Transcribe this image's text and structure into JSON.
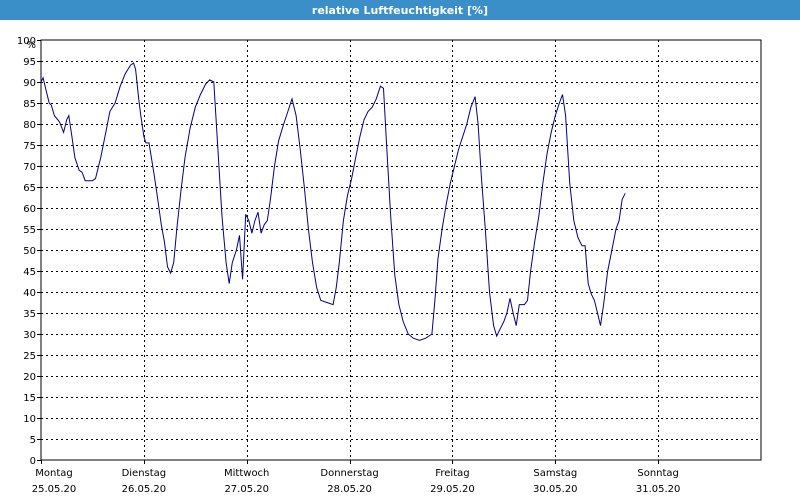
{
  "window": {
    "title": "relative Luftfeuchtigkeit [%]"
  },
  "chart_data": {
    "type": "line",
    "title": "relative Luftfeuchtigkeit [%]",
    "yunit": "%",
    "ylim": [
      0,
      100
    ],
    "yticks": [
      0,
      5,
      10,
      15,
      20,
      25,
      30,
      35,
      40,
      45,
      50,
      55,
      60,
      65,
      70,
      75,
      80,
      85,
      90,
      95,
      100
    ],
    "xlim": [
      0,
      7
    ],
    "x_labels": [
      {
        "day": "Montag",
        "date": "25.05.20"
      },
      {
        "day": "Dienstag",
        "date": "26.05.20"
      },
      {
        "day": "Mittwoch",
        "date": "27.05.20"
      },
      {
        "day": "Donnerstag",
        "date": "28.05.20"
      },
      {
        "day": "Freitag",
        "date": "29.05.20"
      },
      {
        "day": "Samstag",
        "date": "30.05.20"
      },
      {
        "day": "Sonntag",
        "date": "31.05.20"
      }
    ],
    "grid": true,
    "line_color": "#00008b",
    "series": [
      {
        "points": [
          [
            0.0,
            90
          ],
          [
            0.02,
            91
          ],
          [
            0.05,
            88
          ],
          [
            0.08,
            85
          ],
          [
            0.1,
            84.5
          ],
          [
            0.13,
            82
          ],
          [
            0.18,
            80.5
          ],
          [
            0.22,
            78
          ],
          [
            0.25,
            81
          ],
          [
            0.27,
            82
          ],
          [
            0.3,
            77
          ],
          [
            0.33,
            72
          ],
          [
            0.37,
            69
          ],
          [
            0.4,
            68.5
          ],
          [
            0.43,
            66.5
          ],
          [
            0.5,
            66.5
          ],
          [
            0.53,
            67
          ],
          [
            0.58,
            72
          ],
          [
            0.63,
            78
          ],
          [
            0.67,
            83
          ],
          [
            0.72,
            85
          ],
          [
            0.77,
            89
          ],
          [
            0.82,
            92
          ],
          [
            0.87,
            94
          ],
          [
            0.9,
            94.5
          ],
          [
            0.92,
            93
          ],
          [
            0.95,
            86
          ],
          [
            0.97,
            82
          ],
          [
            1.0,
            77
          ],
          [
            1.02,
            75.5
          ],
          [
            1.05,
            75.5
          ],
          [
            1.1,
            68
          ],
          [
            1.13,
            63
          ],
          [
            1.17,
            56
          ],
          [
            1.2,
            52
          ],
          [
            1.23,
            46
          ],
          [
            1.26,
            44.5
          ],
          [
            1.29,
            47
          ],
          [
            1.32,
            55
          ],
          [
            1.36,
            64
          ],
          [
            1.4,
            72
          ],
          [
            1.45,
            79
          ],
          [
            1.5,
            84
          ],
          [
            1.55,
            87
          ],
          [
            1.6,
            89.5
          ],
          [
            1.64,
            90.5
          ],
          [
            1.68,
            90
          ],
          [
            1.72,
            74
          ],
          [
            1.76,
            58
          ],
          [
            1.8,
            47
          ],
          [
            1.83,
            42
          ],
          [
            1.86,
            47
          ],
          [
            1.9,
            50
          ],
          [
            1.93,
            53.5
          ],
          [
            1.96,
            43
          ],
          [
            1.99,
            58.5
          ],
          [
            2.02,
            57
          ],
          [
            2.05,
            54
          ],
          [
            2.08,
            57
          ],
          [
            2.11,
            59
          ],
          [
            2.14,
            54
          ],
          [
            2.17,
            56
          ],
          [
            2.2,
            57
          ],
          [
            2.23,
            62
          ],
          [
            2.27,
            70
          ],
          [
            2.31,
            76
          ],
          [
            2.36,
            80
          ],
          [
            2.4,
            83
          ],
          [
            2.44,
            86
          ],
          [
            2.48,
            82
          ],
          [
            2.52,
            74
          ],
          [
            2.56,
            65
          ],
          [
            2.6,
            55
          ],
          [
            2.64,
            47
          ],
          [
            2.68,
            41
          ],
          [
            2.72,
            38
          ],
          [
            2.78,
            37.5
          ],
          [
            2.84,
            37
          ],
          [
            2.87,
            41
          ],
          [
            2.9,
            47
          ],
          [
            2.94,
            57
          ],
          [
            2.98,
            63
          ],
          [
            3.02,
            67
          ],
          [
            3.06,
            72
          ],
          [
            3.1,
            77
          ],
          [
            3.14,
            81
          ],
          [
            3.18,
            83
          ],
          [
            3.22,
            84
          ],
          [
            3.26,
            86
          ],
          [
            3.3,
            89
          ],
          [
            3.33,
            88.5
          ],
          [
            3.36,
            75
          ],
          [
            3.4,
            58
          ],
          [
            3.44,
            44
          ],
          [
            3.48,
            37
          ],
          [
            3.52,
            33
          ],
          [
            3.57,
            30
          ],
          [
            3.62,
            29
          ],
          [
            3.68,
            28.5
          ],
          [
            3.74,
            29
          ],
          [
            3.8,
            30
          ],
          [
            3.83,
            38
          ],
          [
            3.86,
            48
          ],
          [
            3.9,
            55
          ],
          [
            3.94,
            61
          ],
          [
            3.98,
            66
          ],
          [
            4.02,
            70
          ],
          [
            4.06,
            74
          ],
          [
            4.1,
            77
          ],
          [
            4.14,
            80
          ],
          [
            4.18,
            84
          ],
          [
            4.22,
            86.5
          ],
          [
            4.25,
            80
          ],
          [
            4.28,
            68
          ],
          [
            4.32,
            55
          ],
          [
            4.36,
            40
          ],
          [
            4.4,
            32
          ],
          [
            4.43,
            29.5
          ],
          [
            4.46,
            31
          ],
          [
            4.5,
            33
          ],
          [
            4.53,
            35
          ],
          [
            4.56,
            38.5
          ],
          [
            4.59,
            35
          ],
          [
            4.62,
            32
          ],
          [
            4.65,
            37
          ],
          [
            4.7,
            37
          ],
          [
            4.73,
            38
          ],
          [
            4.76,
            45
          ],
          [
            4.8,
            52
          ],
          [
            4.84,
            58
          ],
          [
            4.88,
            66
          ],
          [
            4.92,
            73
          ],
          [
            4.96,
            78
          ],
          [
            5.0,
            82
          ],
          [
            5.04,
            85
          ],
          [
            5.07,
            87
          ],
          [
            5.1,
            82
          ],
          [
            5.14,
            66
          ],
          [
            5.18,
            57
          ],
          [
            5.22,
            53
          ],
          [
            5.26,
            51
          ],
          [
            5.29,
            51
          ],
          [
            5.32,
            42
          ],
          [
            5.35,
            39.5
          ],
          [
            5.38,
            38
          ],
          [
            5.41,
            35
          ],
          [
            5.44,
            32
          ],
          [
            5.47,
            37
          ],
          [
            5.51,
            45
          ],
          [
            5.55,
            50
          ],
          [
            5.59,
            55
          ],
          [
            5.62,
            57
          ],
          [
            5.65,
            62
          ],
          [
            5.68,
            63.5
          ]
        ]
      }
    ]
  }
}
